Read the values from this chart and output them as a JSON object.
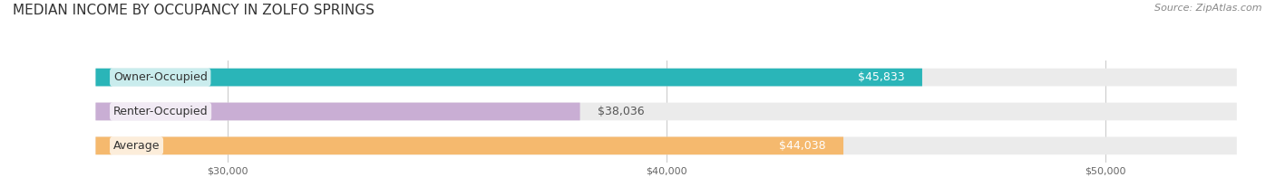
{
  "title": "MEDIAN INCOME BY OCCUPANCY IN ZOLFO SPRINGS",
  "source": "Source: ZipAtlas.com",
  "categories": [
    "Owner-Occupied",
    "Renter-Occupied",
    "Average"
  ],
  "values": [
    45833,
    38036,
    44038
  ],
  "bar_colors": [
    "#2ab5b8",
    "#c9aed4",
    "#f5b96e"
  ],
  "bar_bg_color": "#ebebeb",
  "label_colors": [
    "#ffffff",
    "#555555",
    "#ffffff"
  ],
  "value_labels": [
    "$45,833",
    "$38,036",
    "$44,038"
  ],
  "xlim": [
    27000,
    53000
  ],
  "xticks": [
    30000,
    40000,
    50000
  ],
  "xtick_labels": [
    "$30,000",
    "$40,000",
    "$50,000"
  ],
  "title_fontsize": 11,
  "source_fontsize": 8,
  "label_fontsize": 9,
  "value_fontsize": 9,
  "bar_height": 0.52,
  "background_color": "#ffffff"
}
